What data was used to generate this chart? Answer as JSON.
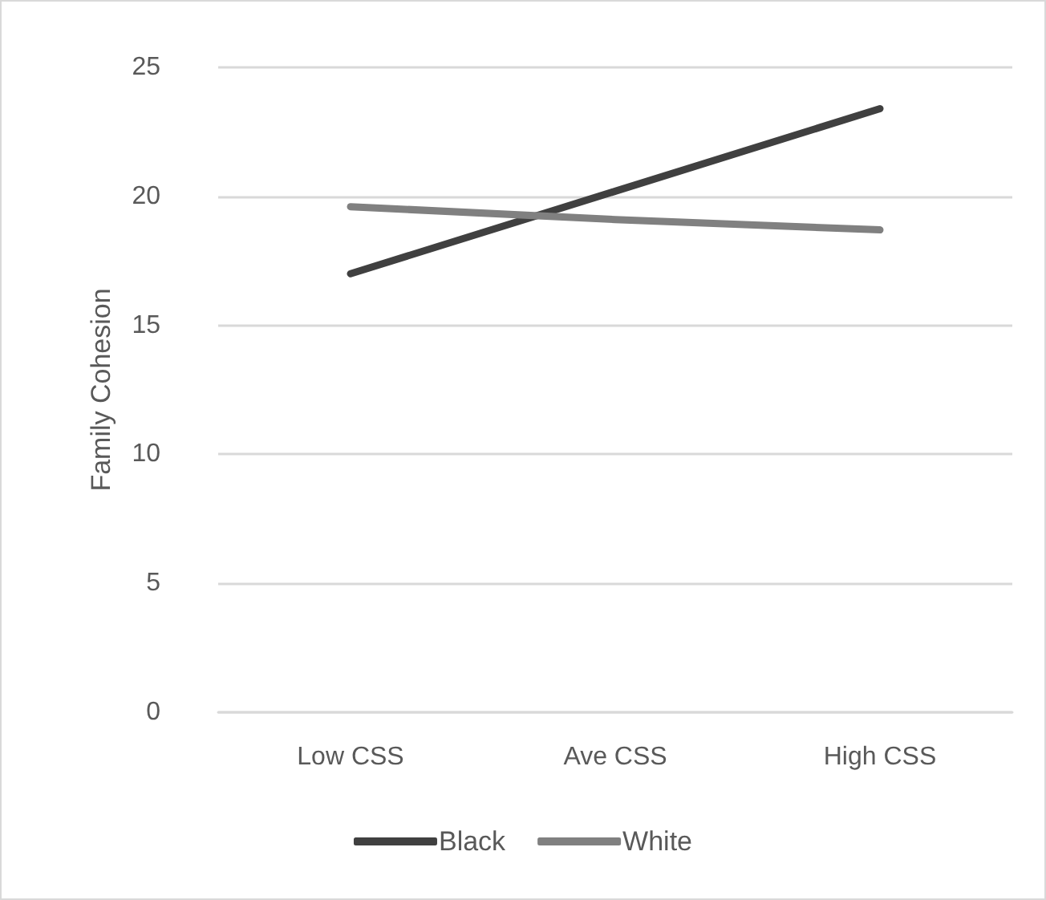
{
  "chart_data": {
    "type": "line",
    "ylabel": "Family Cohesion",
    "categories": [
      "Low CSS",
      "Ave CSS",
      "High CSS"
    ],
    "series": [
      {
        "name": "Black",
        "color": "#404040",
        "values": [
          17.0,
          20.2,
          23.4
        ]
      },
      {
        "name": "White",
        "color": "#808080",
        "values": [
          19.6,
          19.1,
          18.7
        ]
      }
    ],
    "ylim": [
      0,
      25
    ],
    "yticks": [
      0,
      5,
      10,
      15,
      20,
      25
    ],
    "grid": "y",
    "legend": "bottom",
    "marker": "none",
    "line_style": "solid"
  }
}
